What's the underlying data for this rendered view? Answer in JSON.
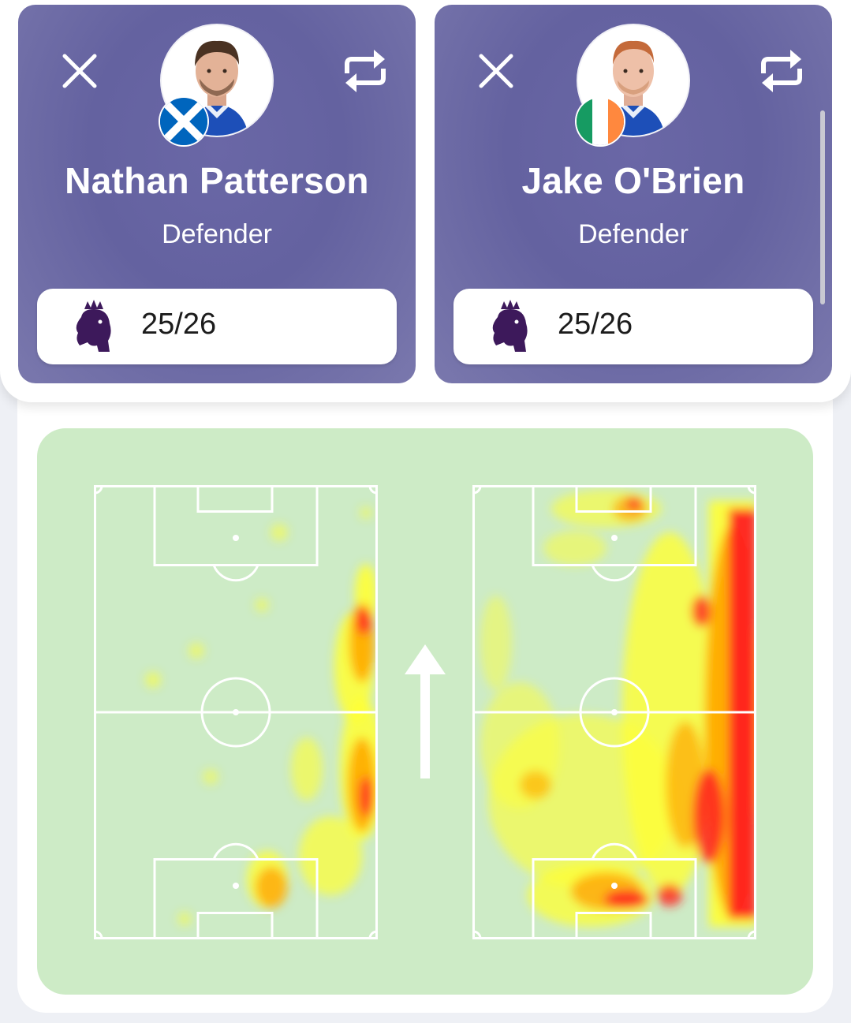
{
  "players": [
    {
      "name": "Nathan Patterson",
      "position": "Defender",
      "season": "25/26",
      "league_logo": "premier-league-lion-icon",
      "nationality_flag": "scotland-flag",
      "close_icon": "close-icon",
      "swap_icon": "swap-icon"
    },
    {
      "name": "Jake O'Brien",
      "position": "Defender",
      "season": "25/26",
      "league_logo": "premier-league-lion-icon",
      "nationality_flag": "ireland-flag",
      "close_icon": "close-icon",
      "swap_icon": "swap-icon"
    }
  ],
  "heatmap": {
    "direction_icon": "attack-direction-arrow-icon",
    "colors": {
      "panel": "#cdebc6",
      "pitch_lines": "#ffffff",
      "heat_low": "#ffff33",
      "heat_mid": "#ffa500",
      "heat_high": "#ff2020"
    }
  },
  "colors": {
    "card_bg": "#6664a2",
    "card_text": "#ffffff",
    "pill_bg": "#ffffff",
    "league_purple": "#3d195b"
  }
}
